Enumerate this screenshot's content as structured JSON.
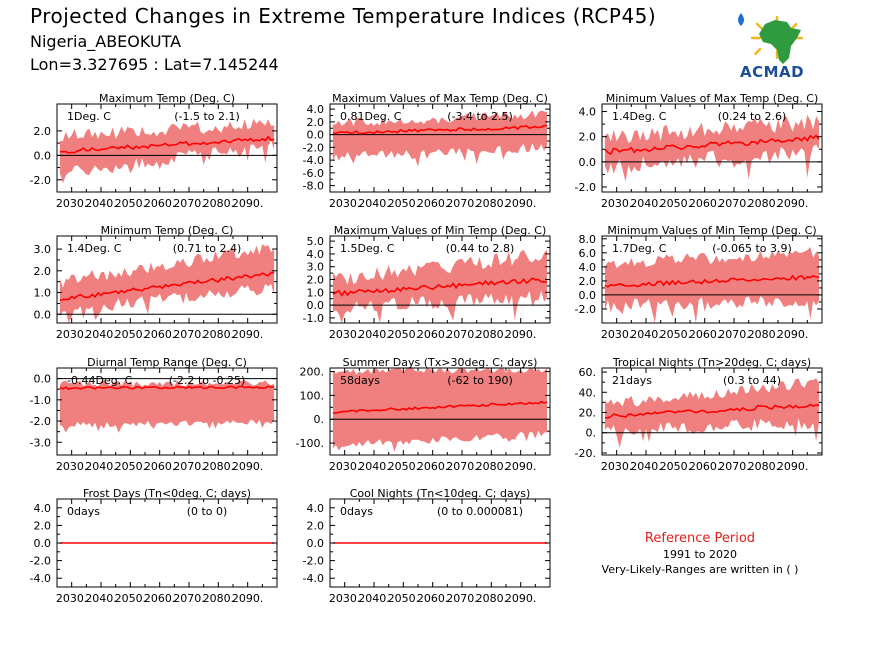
{
  "header": {
    "title": "Projected Changes in Extreme Temperature Indices (RCP45)",
    "station": "Nigeria_ABEOKUTA",
    "coords": "Lon=3.327695 : Lat=7.145244"
  },
  "logo": {
    "text": "ACMAD",
    "icon": "africa-map-logo-icon"
  },
  "reference": {
    "title": "Reference Period",
    "years": "1991 to 2020",
    "note": "Very-Likely-Ranges are written in ( )"
  },
  "colors": {
    "band": "#f08080",
    "median": "#ff0000",
    "zero_line": "#000000"
  },
  "chart_data": [
    {
      "id": "txmean",
      "type": "area",
      "title": "Maximum Temp (Deg. C)",
      "annotation_value": "1Deg. C",
      "annotation_range": "(-1.5 to 2.1)",
      "x_ticks": [
        "2030.",
        "2040.",
        "2050.",
        "2060.",
        "2070.",
        "2080.",
        "2090."
      ],
      "x_range": [
        2025,
        2100
      ],
      "ylim": [
        -3.0,
        4.2
      ],
      "y_ticks": [
        -2.0,
        0.0,
        2.0
      ],
      "y_tick_labels": [
        "-2.0",
        "0.0",
        "2.0"
      ],
      "median_start": 0.3,
      "median_end": 1.4,
      "band_low": [
        -1.5,
        0.9
      ],
      "band_high": [
        1.6,
        2.6
      ],
      "noise": 0.35
    },
    {
      "id": "txx",
      "type": "area",
      "title": "Maximum Values of Max Temp (Deg. C)",
      "annotation_value": "0.81Deg. C",
      "annotation_range": "(-3.4 to 2.5)",
      "x_ticks": [
        "2030.",
        "2040.",
        "2050.",
        "2060.",
        "2070.",
        "2080.",
        "2090."
      ],
      "x_range": [
        2025,
        2100
      ],
      "ylim": [
        -9.0,
        4.8
      ],
      "y_ticks": [
        -8.0,
        -6.0,
        -4.0,
        -2.0,
        0.0,
        2.0,
        4.0
      ],
      "y_tick_labels": [
        "-8.0",
        "-6.0",
        "-4.0",
        "-2.0",
        "0.0",
        "2.0",
        "4.0"
      ],
      "median_start": 0.2,
      "median_end": 1.2,
      "band_low": [
        -3.5,
        -2.0
      ],
      "band_high": [
        1.8,
        3.2
      ],
      "noise": 0.5
    },
    {
      "id": "txn",
      "type": "area",
      "title": "Minimum Values of Max Temp (Deg. C)",
      "annotation_value": "1.4Deg. C",
      "annotation_range": "(0.24 to 2.6)",
      "x_ticks": [
        "2030.",
        "2040.",
        "2050.",
        "2060.",
        "2070.",
        "2080.",
        "2090."
      ],
      "x_range": [
        2025,
        2100
      ],
      "ylim": [
        -2.4,
        4.6
      ],
      "y_ticks": [
        -2.0,
        0.0,
        2.0,
        4.0
      ],
      "y_tick_labels": [
        "-2.0",
        "0.0",
        "2.0",
        "4.0"
      ],
      "median_start": 0.8,
      "median_end": 1.9,
      "band_low": [
        -0.4,
        0.8
      ],
      "band_high": [
        2.0,
        3.2
      ],
      "noise": 0.45
    },
    {
      "id": "tnmean",
      "type": "area",
      "title": "Minimum Temp (Deg. C)",
      "annotation_value": "1.4Deg. C",
      "annotation_range": "(0.71 to 2.4)",
      "x_ticks": [
        "2030.",
        "2040.",
        "2050.",
        "2060.",
        "2070.",
        "2080.",
        "2090."
      ],
      "x_range": [
        2025,
        2100
      ],
      "ylim": [
        -0.4,
        3.6
      ],
      "y_ticks": [
        0.0,
        1.0,
        2.0,
        3.0
      ],
      "y_tick_labels": [
        "0.0",
        "1.0",
        "2.0",
        "3.0"
      ],
      "median_start": 0.7,
      "median_end": 1.9,
      "band_low": [
        0.2,
        1.2
      ],
      "band_high": [
        1.5,
        3.1
      ],
      "noise": 0.2
    },
    {
      "id": "tnx",
      "type": "area",
      "title": "Maximum Values of Min Temp (Deg. C)",
      "annotation_value": "1.5Deg. C",
      "annotation_range": "(0.44 to 2.8)",
      "x_ticks": [
        "2030.",
        "2040.",
        "2050.",
        "2060.",
        "2070.",
        "2080.",
        "2090."
      ],
      "x_range": [
        2025,
        2100
      ],
      "ylim": [
        -1.4,
        5.4
      ],
      "y_ticks": [
        -1.0,
        0.0,
        1.0,
        2.0,
        3.0,
        4.0,
        5.0
      ],
      "y_tick_labels": [
        "-1.0",
        "0.0",
        "1.0",
        "2.0",
        "3.0",
        "4.0",
        "5.0"
      ],
      "median_start": 0.9,
      "median_end": 2.0,
      "band_low": [
        -0.2,
        0.6
      ],
      "band_high": [
        2.0,
        4.0
      ],
      "noise": 0.4
    },
    {
      "id": "tnn",
      "type": "area",
      "title": "Minimum Values of Min Temp (Deg. C)",
      "annotation_value": "1.7Deg. C",
      "annotation_range": "(-0.065 to 3.9)",
      "x_ticks": [
        "2030.",
        "2040.",
        "2050.",
        "2060.",
        "2070.",
        "2080.",
        "2090."
      ],
      "x_range": [
        2025,
        2100
      ],
      "ylim": [
        -4.0,
        8.4
      ],
      "y_ticks": [
        -2.0,
        0.0,
        2.0,
        4.0,
        6.0,
        8.0
      ],
      "y_tick_labels": [
        "-2.0",
        "0.0",
        "2.0",
        "4.0",
        "6.0",
        "8.0"
      ],
      "median_start": 1.3,
      "median_end": 2.6,
      "band_low": [
        -1.5,
        -0.8
      ],
      "band_high": [
        4.5,
        6.0
      ],
      "noise": 0.6
    },
    {
      "id": "dtr",
      "type": "area",
      "title": "Diurnal Temp Range (Deg. C)",
      "annotation_value": "-0.44Deg. C",
      "annotation_range": "(-2.2 to -0.25)",
      "x_ticks": [
        "2030.",
        "2040.",
        "2050.",
        "2060.",
        "2070.",
        "2080.",
        "2090."
      ],
      "x_range": [
        2025,
        2100
      ],
      "ylim": [
        -3.6,
        0.5
      ],
      "y_ticks": [
        -3.0,
        -2.0,
        -1.0,
        0.0
      ],
      "y_tick_labels": [
        "-3.0",
        "-2.0",
        "-1.0",
        "0.0"
      ],
      "median_start": -0.45,
      "median_end": -0.4,
      "band_low": [
        -2.2,
        -2.0
      ],
      "band_high": [
        -0.25,
        -0.2
      ],
      "noise": 0.1
    },
    {
      "id": "su",
      "type": "area",
      "title": "Summer Days (Tx>30deg. C; days)",
      "annotation_value": "58days",
      "annotation_range": "(-62 to 190)",
      "x_ticks": [
        "2030.",
        "2040.",
        "2050.",
        "2060.",
        "2070.",
        "2080.",
        "2090."
      ],
      "x_range": [
        2025,
        2100
      ],
      "ylim": [
        -150,
        215
      ],
      "y_ticks": [
        -100,
        0,
        100,
        200
      ],
      "y_tick_labels": [
        "-100.",
        "0.",
        "100.",
        "200."
      ],
      "median_start": 30,
      "median_end": 72,
      "band_low": [
        -110,
        -60
      ],
      "band_high": [
        200,
        210
      ],
      "noise": 10
    },
    {
      "id": "tr",
      "type": "area",
      "title": "Tropical Nights (Tn>20deg. C; days)",
      "annotation_value": "21days",
      "annotation_range": "(0.3 to 44)",
      "x_ticks": [
        "2030.",
        "2040.",
        "2050.",
        "2060.",
        "2070.",
        "2080.",
        "2090."
      ],
      "x_range": [
        2025,
        2100
      ],
      "ylim": [
        -22,
        64
      ],
      "y_ticks": [
        -20,
        0,
        20,
        40,
        60
      ],
      "y_tick_labels": [
        "-20.",
        "0.",
        "20.",
        "40.",
        "60."
      ],
      "median_start": 16,
      "median_end": 28,
      "band_low": [
        2,
        10
      ],
      "band_high": [
        28,
        50
      ],
      "noise": 4
    },
    {
      "id": "fd",
      "type": "area",
      "title": "Frost Days (Tn<0deg. C; days)",
      "annotation_value": "0days",
      "annotation_range": "(0 to 0)",
      "x_ticks": [
        "2030.",
        "2040.",
        "2050.",
        "2060.",
        "2070.",
        "2080.",
        "2090."
      ],
      "x_range": [
        2025,
        2100
      ],
      "ylim": [
        -5.0,
        5.0
      ],
      "y_ticks": [
        -4.0,
        -2.0,
        0.0,
        2.0,
        4.0
      ],
      "y_tick_labels": [
        "-4.0",
        "-2.0",
        "0.0",
        "2.0",
        "4.0"
      ],
      "median_start": 0,
      "median_end": 0,
      "band_low": [
        0,
        0
      ],
      "band_high": [
        0,
        0
      ],
      "noise": 0
    },
    {
      "id": "cn",
      "type": "area",
      "title": "Cool Nights (Tn<10deg. C; days)",
      "annotation_value": "0days",
      "annotation_range": "(0 to 0.000081)",
      "x_ticks": [
        "2030.",
        "2040.",
        "2050.",
        "2060.",
        "2070.",
        "2080.",
        "2090."
      ],
      "x_range": [
        2025,
        2100
      ],
      "ylim": [
        -5.0,
        5.0
      ],
      "y_ticks": [
        -4.0,
        -2.0,
        0.0,
        2.0,
        4.0
      ],
      "y_tick_labels": [
        "-4.0",
        "-2.0",
        "0.0",
        "2.0",
        "4.0"
      ],
      "median_start": 0,
      "median_end": 0,
      "band_low": [
        0,
        0
      ],
      "band_high": [
        0,
        0
      ],
      "noise": 0
    }
  ]
}
